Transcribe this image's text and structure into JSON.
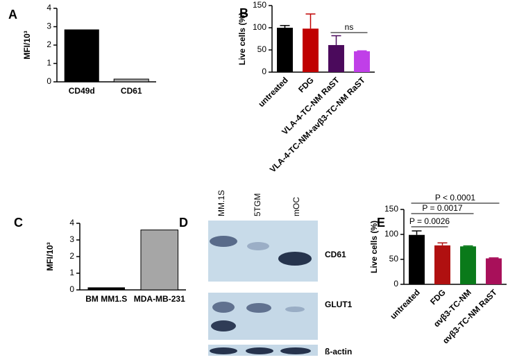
{
  "chart_data": [
    {
      "type": "bar",
      "panel": "A",
      "ylabel": "MFI/10³",
      "categories": [
        "CD49d",
        "CD61"
      ],
      "values": [
        2.85,
        0.15
      ],
      "colors": [
        "#000000",
        "#a6a6a6"
      ],
      "ylim": [
        0,
        4
      ],
      "yticks": [
        0,
        1,
        2,
        3,
        4
      ]
    },
    {
      "type": "bar",
      "panel": "B",
      "ylabel": "Live cells (%)",
      "categories": [
        "untreated",
        "FDG",
        "VLA-4-TC-NM RaST",
        "VLA-4-TC-NM+avβ3-TC-NM RaST"
      ],
      "values": [
        100,
        98,
        61,
        47
      ],
      "errors": [
        5,
        33,
        21,
        1
      ],
      "colors": [
        "#000000",
        "#c00000",
        "#4b0a5c",
        "#c03fe8"
      ],
      "ylim": [
        0,
        150
      ],
      "yticks": [
        0,
        50,
        100,
        150
      ],
      "annotations": [
        "ns"
      ]
    },
    {
      "type": "bar",
      "panel": "C",
      "ylabel": "MFI/10³",
      "categories": [
        "BM MM1.S",
        "MDA-MB-231"
      ],
      "values": [
        0.15,
        3.6
      ],
      "colors": [
        "#000000",
        "#a6a6a6"
      ],
      "ylim": [
        0,
        4
      ],
      "yticks": [
        0,
        1,
        2,
        3,
        4
      ]
    },
    {
      "type": "bar",
      "panel": "E",
      "ylabel": "Live cells (%)",
      "categories": [
        "untreated",
        "FDG",
        "αvβ3-TC-NM",
        "αvβ3-TC-NM RaST"
      ],
      "values": [
        99,
        78,
        76,
        52
      ],
      "errors": [
        8,
        5,
        1,
        1
      ],
      "colors": [
        "#000000",
        "#b01010",
        "#0a7a1a",
        "#a8105a"
      ],
      "ylim": [
        0,
        150
      ],
      "yticks": [
        0,
        50,
        100,
        150
      ],
      "annotations": [
        "P = 0.0026",
        "P = 0.0017",
        "P < 0.0001"
      ]
    }
  ],
  "blot": {
    "panel": "D",
    "lanes": [
      "MM.1S",
      "5TGM",
      "mOC"
    ],
    "bands": [
      "CD61",
      "GLUT1",
      "ß-actin"
    ]
  }
}
